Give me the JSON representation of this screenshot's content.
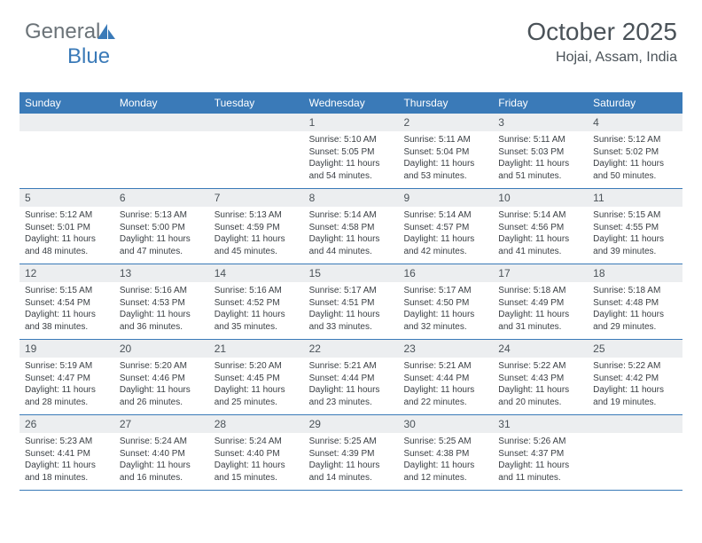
{
  "brand": {
    "name1": "General",
    "name2": "Blue"
  },
  "title": {
    "month_year": "October 2025",
    "location": "Hojai, Assam, India"
  },
  "colors": {
    "header_bg": "#3a7ab8",
    "header_text": "#ffffff",
    "daynum_bg": "#eceef0",
    "text": "#4a5258",
    "row_border": "#3a7ab8",
    "brand_gray": "#6b7378",
    "brand_blue": "#3a7ab8"
  },
  "day_headers": [
    "Sunday",
    "Monday",
    "Tuesday",
    "Wednesday",
    "Thursday",
    "Friday",
    "Saturday"
  ],
  "weeks": [
    [
      {
        "n": "",
        "sr": "",
        "ss": "",
        "dl": ""
      },
      {
        "n": "",
        "sr": "",
        "ss": "",
        "dl": ""
      },
      {
        "n": "",
        "sr": "",
        "ss": "",
        "dl": ""
      },
      {
        "n": "1",
        "sr": "Sunrise: 5:10 AM",
        "ss": "Sunset: 5:05 PM",
        "dl": "Daylight: 11 hours and 54 minutes."
      },
      {
        "n": "2",
        "sr": "Sunrise: 5:11 AM",
        "ss": "Sunset: 5:04 PM",
        "dl": "Daylight: 11 hours and 53 minutes."
      },
      {
        "n": "3",
        "sr": "Sunrise: 5:11 AM",
        "ss": "Sunset: 5:03 PM",
        "dl": "Daylight: 11 hours and 51 minutes."
      },
      {
        "n": "4",
        "sr": "Sunrise: 5:12 AM",
        "ss": "Sunset: 5:02 PM",
        "dl": "Daylight: 11 hours and 50 minutes."
      }
    ],
    [
      {
        "n": "5",
        "sr": "Sunrise: 5:12 AM",
        "ss": "Sunset: 5:01 PM",
        "dl": "Daylight: 11 hours and 48 minutes."
      },
      {
        "n": "6",
        "sr": "Sunrise: 5:13 AM",
        "ss": "Sunset: 5:00 PM",
        "dl": "Daylight: 11 hours and 47 minutes."
      },
      {
        "n": "7",
        "sr": "Sunrise: 5:13 AM",
        "ss": "Sunset: 4:59 PM",
        "dl": "Daylight: 11 hours and 45 minutes."
      },
      {
        "n": "8",
        "sr": "Sunrise: 5:14 AM",
        "ss": "Sunset: 4:58 PM",
        "dl": "Daylight: 11 hours and 44 minutes."
      },
      {
        "n": "9",
        "sr": "Sunrise: 5:14 AM",
        "ss": "Sunset: 4:57 PM",
        "dl": "Daylight: 11 hours and 42 minutes."
      },
      {
        "n": "10",
        "sr": "Sunrise: 5:14 AM",
        "ss": "Sunset: 4:56 PM",
        "dl": "Daylight: 11 hours and 41 minutes."
      },
      {
        "n": "11",
        "sr": "Sunrise: 5:15 AM",
        "ss": "Sunset: 4:55 PM",
        "dl": "Daylight: 11 hours and 39 minutes."
      }
    ],
    [
      {
        "n": "12",
        "sr": "Sunrise: 5:15 AM",
        "ss": "Sunset: 4:54 PM",
        "dl": "Daylight: 11 hours and 38 minutes."
      },
      {
        "n": "13",
        "sr": "Sunrise: 5:16 AM",
        "ss": "Sunset: 4:53 PM",
        "dl": "Daylight: 11 hours and 36 minutes."
      },
      {
        "n": "14",
        "sr": "Sunrise: 5:16 AM",
        "ss": "Sunset: 4:52 PM",
        "dl": "Daylight: 11 hours and 35 minutes."
      },
      {
        "n": "15",
        "sr": "Sunrise: 5:17 AM",
        "ss": "Sunset: 4:51 PM",
        "dl": "Daylight: 11 hours and 33 minutes."
      },
      {
        "n": "16",
        "sr": "Sunrise: 5:17 AM",
        "ss": "Sunset: 4:50 PM",
        "dl": "Daylight: 11 hours and 32 minutes."
      },
      {
        "n": "17",
        "sr": "Sunrise: 5:18 AM",
        "ss": "Sunset: 4:49 PM",
        "dl": "Daylight: 11 hours and 31 minutes."
      },
      {
        "n": "18",
        "sr": "Sunrise: 5:18 AM",
        "ss": "Sunset: 4:48 PM",
        "dl": "Daylight: 11 hours and 29 minutes."
      }
    ],
    [
      {
        "n": "19",
        "sr": "Sunrise: 5:19 AM",
        "ss": "Sunset: 4:47 PM",
        "dl": "Daylight: 11 hours and 28 minutes."
      },
      {
        "n": "20",
        "sr": "Sunrise: 5:20 AM",
        "ss": "Sunset: 4:46 PM",
        "dl": "Daylight: 11 hours and 26 minutes."
      },
      {
        "n": "21",
        "sr": "Sunrise: 5:20 AM",
        "ss": "Sunset: 4:45 PM",
        "dl": "Daylight: 11 hours and 25 minutes."
      },
      {
        "n": "22",
        "sr": "Sunrise: 5:21 AM",
        "ss": "Sunset: 4:44 PM",
        "dl": "Daylight: 11 hours and 23 minutes."
      },
      {
        "n": "23",
        "sr": "Sunrise: 5:21 AM",
        "ss": "Sunset: 4:44 PM",
        "dl": "Daylight: 11 hours and 22 minutes."
      },
      {
        "n": "24",
        "sr": "Sunrise: 5:22 AM",
        "ss": "Sunset: 4:43 PM",
        "dl": "Daylight: 11 hours and 20 minutes."
      },
      {
        "n": "25",
        "sr": "Sunrise: 5:22 AM",
        "ss": "Sunset: 4:42 PM",
        "dl": "Daylight: 11 hours and 19 minutes."
      }
    ],
    [
      {
        "n": "26",
        "sr": "Sunrise: 5:23 AM",
        "ss": "Sunset: 4:41 PM",
        "dl": "Daylight: 11 hours and 18 minutes."
      },
      {
        "n": "27",
        "sr": "Sunrise: 5:24 AM",
        "ss": "Sunset: 4:40 PM",
        "dl": "Daylight: 11 hours and 16 minutes."
      },
      {
        "n": "28",
        "sr": "Sunrise: 5:24 AM",
        "ss": "Sunset: 4:40 PM",
        "dl": "Daylight: 11 hours and 15 minutes."
      },
      {
        "n": "29",
        "sr": "Sunrise: 5:25 AM",
        "ss": "Sunset: 4:39 PM",
        "dl": "Daylight: 11 hours and 14 minutes."
      },
      {
        "n": "30",
        "sr": "Sunrise: 5:25 AM",
        "ss": "Sunset: 4:38 PM",
        "dl": "Daylight: 11 hours and 12 minutes."
      },
      {
        "n": "31",
        "sr": "Sunrise: 5:26 AM",
        "ss": "Sunset: 4:37 PM",
        "dl": "Daylight: 11 hours and 11 minutes."
      },
      {
        "n": "",
        "sr": "",
        "ss": "",
        "dl": ""
      }
    ]
  ]
}
